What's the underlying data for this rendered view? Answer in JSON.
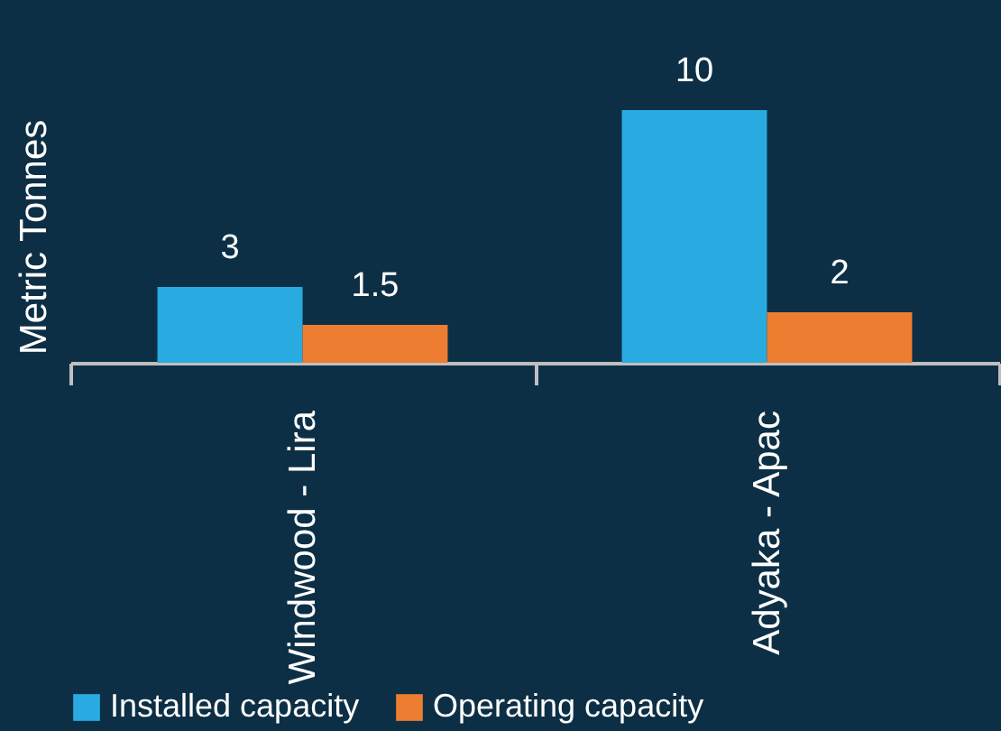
{
  "chart_data": {
    "type": "bar",
    "ylabel": "Metric Tonnes",
    "categories": [
      "Windwood - Lira",
      "Adyaka - Apac"
    ],
    "series": [
      {
        "name": "Installed capacity",
        "color": "#29abe2",
        "values": [
          3,
          10
        ]
      },
      {
        "name": "Operating capacity",
        "color": "#ed7d31",
        "values": [
          1.5,
          2
        ]
      }
    ],
    "data_labels": true,
    "legend": "bottom",
    "grid": false
  }
}
